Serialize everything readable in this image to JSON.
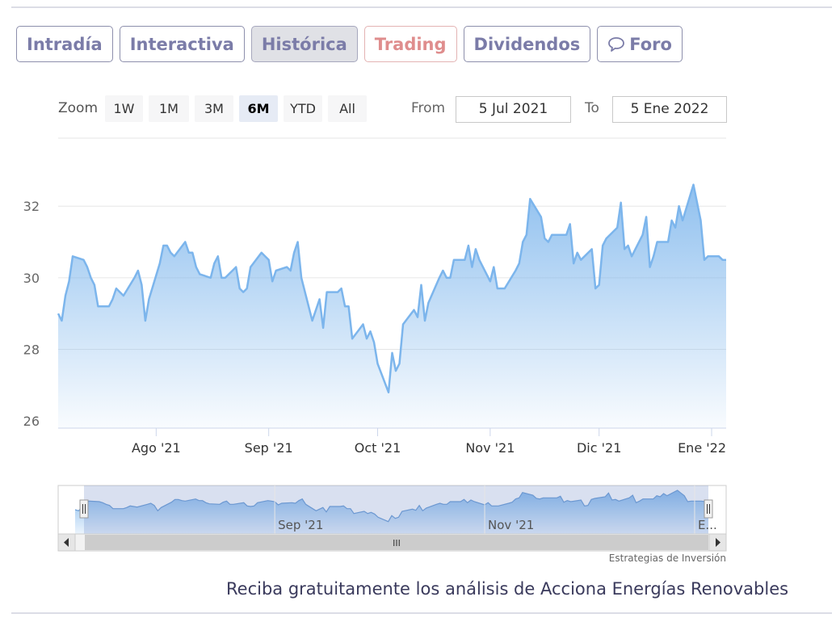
{
  "tabs": [
    {
      "label": "Intradía",
      "state": "normal"
    },
    {
      "label": "Interactiva",
      "state": "normal"
    },
    {
      "label": "Histórica",
      "state": "active"
    },
    {
      "label": "Trading",
      "state": "highlight"
    },
    {
      "label": "Dividendos",
      "state": "normal"
    },
    {
      "label": "Foro",
      "state": "normal",
      "icon": "speech-bubble-icon"
    }
  ],
  "range_selector": {
    "zoom_label": "Zoom",
    "buttons": [
      "1W",
      "1M",
      "3M",
      "6M",
      "YTD",
      "All"
    ],
    "selected": "6M",
    "from_label": "From",
    "from_value": "5 Jul 2021",
    "to_label": "To",
    "to_value": "5 Ene 2022"
  },
  "chart_data": {
    "type": "area",
    "title": "",
    "xlabel": "",
    "ylabel": "",
    "x_ticks": [
      "Ago '21",
      "Sep '21",
      "Oct '21",
      "Nov '21",
      "Dic '21",
      "Ene '22"
    ],
    "y_ticks": [
      "32",
      "30",
      "28",
      "26"
    ],
    "ylim": [
      25.8,
      33.9
    ],
    "xlim": [
      "2021-07-05",
      "2022-01-05"
    ],
    "grid": true,
    "line_color": "#7cb5ec",
    "series": [
      {
        "x": [
          "2021-07-05",
          "2021-07-06",
          "2021-07-07",
          "2021-07-08",
          "2021-07-09",
          "2021-07-12",
          "2021-07-13",
          "2021-07-14",
          "2021-07-15",
          "2021-07-16",
          "2021-07-19",
          "2021-07-20",
          "2021-07-21",
          "2021-07-22",
          "2021-07-23",
          "2021-07-26",
          "2021-07-27",
          "2021-07-28",
          "2021-07-29",
          "2021-07-30",
          "2021-08-02",
          "2021-08-03",
          "2021-08-04",
          "2021-08-05",
          "2021-08-06",
          "2021-08-09",
          "2021-08-10",
          "2021-08-11",
          "2021-08-12",
          "2021-08-13",
          "2021-08-16",
          "2021-08-17",
          "2021-08-18",
          "2021-08-19",
          "2021-08-20",
          "2021-08-23",
          "2021-08-24",
          "2021-08-25",
          "2021-08-26",
          "2021-08-27",
          "2021-08-30",
          "2021-08-31",
          "2021-09-01",
          "2021-09-02",
          "2021-09-03",
          "2021-09-06",
          "2021-09-07",
          "2021-09-08",
          "2021-09-09",
          "2021-09-10",
          "2021-09-13",
          "2021-09-14",
          "2021-09-15",
          "2021-09-16",
          "2021-09-17",
          "2021-09-20",
          "2021-09-21",
          "2021-09-22",
          "2021-09-23",
          "2021-09-24",
          "2021-09-27",
          "2021-09-28",
          "2021-09-29",
          "2021-09-30",
          "2021-10-01",
          "2021-10-04",
          "2021-10-05",
          "2021-10-06",
          "2021-10-07",
          "2021-10-08",
          "2021-10-11",
          "2021-10-12",
          "2021-10-13",
          "2021-10-14",
          "2021-10-15",
          "2021-10-18",
          "2021-10-19",
          "2021-10-20",
          "2021-10-21",
          "2021-10-22",
          "2021-10-25",
          "2021-10-26",
          "2021-10-27",
          "2021-10-28",
          "2021-10-29",
          "2021-11-01",
          "2021-11-02",
          "2021-11-03",
          "2021-11-04",
          "2021-11-05",
          "2021-11-08",
          "2021-11-09",
          "2021-11-10",
          "2021-11-11",
          "2021-11-12",
          "2021-11-15",
          "2021-11-16",
          "2021-11-17",
          "2021-11-18",
          "2021-11-19",
          "2021-11-22",
          "2021-11-23",
          "2021-11-24",
          "2021-11-25",
          "2021-11-26",
          "2021-11-29",
          "2021-11-30",
          "2021-12-01",
          "2021-12-02",
          "2021-12-03",
          "2021-12-06",
          "2021-12-07",
          "2021-12-08",
          "2021-12-09",
          "2021-12-10",
          "2021-12-13",
          "2021-12-14",
          "2021-12-15",
          "2021-12-16",
          "2021-12-17",
          "2021-12-20",
          "2021-12-21",
          "2021-12-22",
          "2021-12-23",
          "2021-12-24",
          "2021-12-27",
          "2021-12-28",
          "2021-12-29",
          "2021-12-30",
          "2021-12-31",
          "2022-01-03",
          "2022-01-04",
          "2022-01-05"
        ],
        "y": [
          29.0,
          28.8,
          29.5,
          29.9,
          30.6,
          30.5,
          30.3,
          30.0,
          29.8,
          29.2,
          29.2,
          29.4,
          29.7,
          29.6,
          29.5,
          30.0,
          30.2,
          29.8,
          28.8,
          29.4,
          30.4,
          30.9,
          30.9,
          30.7,
          30.6,
          31.0,
          30.7,
          30.7,
          30.3,
          30.1,
          30.0,
          30.4,
          30.6,
          30.0,
          30.0,
          30.3,
          29.7,
          29.6,
          29.7,
          30.3,
          30.7,
          30.6,
          30.5,
          29.9,
          30.2,
          30.3,
          30.2,
          30.7,
          31.0,
          30.0,
          28.8,
          29.1,
          29.4,
          28.6,
          29.6,
          29.6,
          29.7,
          29.2,
          29.2,
          28.3,
          28.7,
          28.3,
          28.5,
          28.2,
          27.6,
          26.8,
          27.9,
          27.4,
          27.6,
          28.7,
          29.1,
          28.9,
          29.8,
          28.8,
          29.3,
          30.0,
          30.2,
          30.0,
          30.0,
          30.5,
          30.5,
          30.9,
          30.3,
          30.8,
          30.5,
          29.9,
          30.3,
          29.7,
          29.7,
          29.7,
          30.2,
          30.4,
          31.0,
          31.2,
          32.2,
          31.7,
          31.1,
          31.0,
          31.2,
          31.2,
          31.2,
          31.5,
          30.4,
          30.7,
          30.5,
          30.8,
          29.7,
          29.8,
          30.9,
          31.1,
          31.4,
          32.1,
          30.8,
          30.9,
          30.6,
          31.2,
          31.7,
          30.3,
          30.6,
          31.0,
          31.0,
          31.6,
          31.4,
          32.0,
          31.6,
          32.6,
          32.1,
          31.6,
          30.5,
          30.6,
          30.6,
          30.5,
          30.5
        ]
      }
    ]
  },
  "navigator": {
    "labels": [
      "Sep '21",
      "Nov '21",
      "E..."
    ],
    "scroll_handle": "III"
  },
  "credits": "Estrategias de Inversión",
  "cta": "Reciba gratuitamente los análisis de Acciona Energías Renovables"
}
